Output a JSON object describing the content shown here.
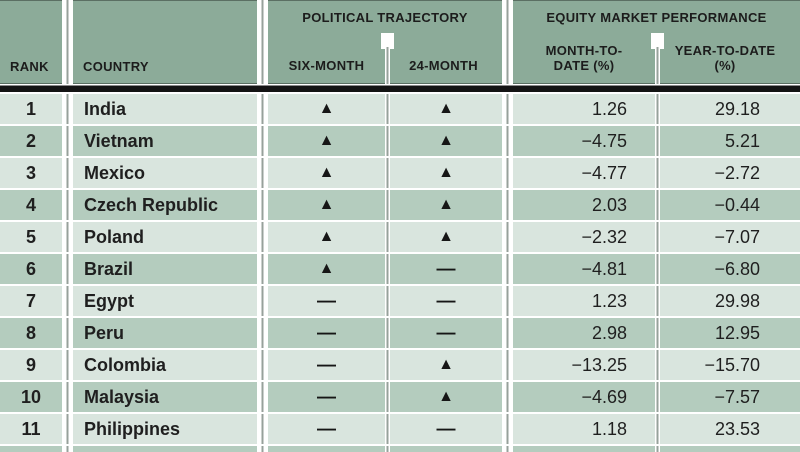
{
  "chart_data": {
    "type": "table",
    "header": {
      "rank_label": "RANK",
      "country_label": "COUNTRY",
      "political_group_label": "POLITICAL TRAJECTORY",
      "six_month_label": "SIX-MONTH",
      "twenty_four_month_label": "24-MONTH",
      "equity_group_label": "EQUITY MARKET PERFORMANCE",
      "mtd_label_line1": "MONTH-TO-",
      "mtd_label_line2": "DATE (%)",
      "ytd_label_line1": "YEAR-TO-DATE",
      "ytd_label_line2": "(%)"
    },
    "symbols": {
      "up": "▲",
      "flat": "—"
    },
    "rows": [
      {
        "rank": "1",
        "country": "India",
        "six_month": "up",
        "twenty_four_month": "up",
        "mtd": "1.26",
        "ytd": "29.18"
      },
      {
        "rank": "2",
        "country": "Vietnam",
        "six_month": "up",
        "twenty_four_month": "up",
        "mtd": "−4.75",
        "ytd": "5.21"
      },
      {
        "rank": "3",
        "country": "Mexico",
        "six_month": "up",
        "twenty_four_month": "up",
        "mtd": "−4.77",
        "ytd": "−2.72"
      },
      {
        "rank": "4",
        "country": "Czech Republic",
        "six_month": "up",
        "twenty_four_month": "up",
        "mtd": "2.03",
        "ytd": "−0.44"
      },
      {
        "rank": "5",
        "country": "Poland",
        "six_month": "up",
        "twenty_four_month": "up",
        "mtd": "−2.32",
        "ytd": "−7.07"
      },
      {
        "rank": "6",
        "country": "Brazil",
        "six_month": "up",
        "twenty_four_month": "flat",
        "mtd": "−4.81",
        "ytd": "−6.80"
      },
      {
        "rank": "7",
        "country": "Egypt",
        "six_month": "flat",
        "twenty_four_month": "flat",
        "mtd": "1.23",
        "ytd": "29.98"
      },
      {
        "rank": "8",
        "country": "Peru",
        "six_month": "flat",
        "twenty_four_month": "flat",
        "mtd": "2.98",
        "ytd": "12.95"
      },
      {
        "rank": "9",
        "country": "Colombia",
        "six_month": "flat",
        "twenty_four_month": "up",
        "mtd": "−13.25",
        "ytd": "−15.70"
      },
      {
        "rank": "10",
        "country": "Malaysia",
        "six_month": "flat",
        "twenty_four_month": "up",
        "mtd": "−4.69",
        "ytd": "−7.57"
      },
      {
        "rank": "11",
        "country": "Philippines",
        "six_month": "flat",
        "twenty_four_month": "flat",
        "mtd": "1.18",
        "ytd": "23.53"
      }
    ],
    "colors": {
      "header_bg": "#8cab99",
      "row_light": "#d9e5de",
      "row_dark": "#b4ccbe",
      "gutter_line": "#97a19b",
      "rule_black": "#141414",
      "text": "#1f1f1f"
    }
  }
}
